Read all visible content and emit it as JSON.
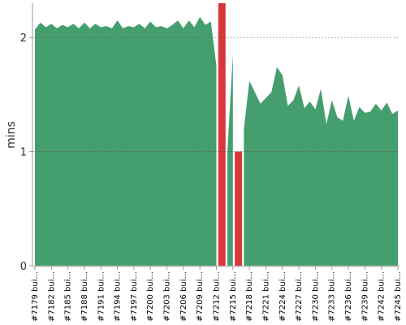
{
  "chart_data": {
    "type": "area",
    "y_label": "mins",
    "categories": [
      "#7179 bui...",
      null,
      null,
      "#7182 bui...",
      null,
      null,
      "#7185 bui...",
      null,
      null,
      "#7188 bui...",
      null,
      null,
      "#7191 bui...",
      null,
      null,
      "#7194 bui...",
      null,
      null,
      "#7197 bui...",
      null,
      null,
      "#7200 bui...",
      null,
      null,
      "#7203 bui...",
      null,
      null,
      "#7206 bui...",
      null,
      null,
      "#7209 bui...",
      null,
      null,
      "#7212 bui...",
      null,
      null,
      "#7215 bui...",
      null,
      null,
      "#7218 bui...",
      null,
      null,
      "#7221 bui...",
      null,
      null,
      "#7224 bui...",
      null,
      null,
      "#7227 bui...",
      null,
      null,
      "#7230 bui...",
      null,
      null,
      "#7233 bui...",
      null,
      null,
      "#7236 bui...",
      null,
      null,
      "#7239 bui...",
      null,
      null,
      "#7242 bui...",
      null,
      null,
      "#7245 bui..."
    ],
    "series": [
      {
        "color": "#459e6e",
        "values": [
          2.07,
          2.13,
          2.09,
          2.12,
          2.08,
          2.11,
          2.09,
          2.12,
          2.08,
          2.13,
          2.08,
          2.12,
          2.09,
          2.1,
          2.08,
          2.15,
          2.08,
          2.1,
          2.09,
          2.12,
          2.08,
          2.14,
          2.09,
          2.1,
          2.08,
          2.11,
          2.15,
          2.08,
          2.15,
          2.09,
          2.18,
          2.11,
          2.14,
          1.75,
          null,
          1.0,
          1.85,
          null,
          1.2,
          1.62,
          1.52,
          1.42,
          1.47,
          1.52,
          1.74,
          1.67,
          1.4,
          1.45,
          1.58,
          1.38,
          1.44,
          1.37,
          1.55,
          1.24,
          1.45,
          1.3,
          1.27,
          1.49,
          1.27,
          1.39,
          1.34,
          1.35,
          1.42,
          1.36,
          1.43,
          1.33,
          1.36
        ]
      },
      {
        "color": "#d9383a",
        "values": [
          null,
          null,
          null,
          null,
          null,
          null,
          null,
          null,
          null,
          null,
          null,
          null,
          null,
          null,
          null,
          null,
          null,
          null,
          null,
          null,
          null,
          null,
          null,
          null,
          null,
          null,
          null,
          null,
          null,
          null,
          null,
          null,
          null,
          null,
          2.3,
          null,
          null,
          1.0,
          null,
          null,
          null,
          null,
          null,
          null,
          null,
          null,
          null,
          null,
          null,
          null,
          null,
          null,
          null,
          null,
          null,
          null,
          null,
          null,
          null,
          null,
          null,
          null,
          null,
          null,
          null,
          null,
          null
        ]
      }
    ],
    "ylim": [
      0,
      2.3
    ],
    "yticks": [
      0,
      1,
      2
    ],
    "grid": true
  }
}
